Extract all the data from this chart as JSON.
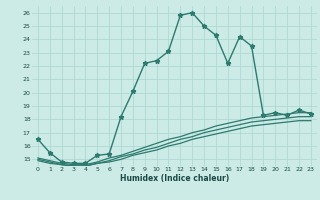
{
  "xlabel": "Humidex (Indice chaleur)",
  "x": [
    0,
    1,
    2,
    3,
    4,
    5,
    6,
    7,
    8,
    9,
    10,
    11,
    12,
    13,
    14,
    15,
    16,
    17,
    18,
    19,
    20,
    21,
    22,
    23
  ],
  "main_line": [
    16.5,
    15.5,
    14.8,
    14.7,
    14.7,
    15.3,
    15.4,
    18.2,
    20.1,
    22.2,
    22.4,
    23.1,
    25.8,
    26.0,
    25.0,
    24.3,
    22.2,
    24.2,
    23.5,
    18.3,
    18.5,
    18.3,
    18.7,
    18.4
  ],
  "line2": [
    15.1,
    14.9,
    14.7,
    14.6,
    14.6,
    14.8,
    15.1,
    15.3,
    15.6,
    15.9,
    16.2,
    16.5,
    16.7,
    17.0,
    17.2,
    17.5,
    17.7,
    17.9,
    18.1,
    18.2,
    18.3,
    18.4,
    18.5,
    18.5
  ],
  "line3": [
    15.0,
    14.8,
    14.6,
    14.5,
    14.5,
    14.7,
    14.9,
    15.2,
    15.4,
    15.7,
    15.9,
    16.2,
    16.5,
    16.7,
    17.0,
    17.2,
    17.4,
    17.6,
    17.8,
    17.9,
    18.0,
    18.1,
    18.2,
    18.2
  ],
  "line4": [
    14.9,
    14.7,
    14.6,
    14.5,
    14.5,
    14.7,
    14.8,
    15.0,
    15.3,
    15.5,
    15.7,
    16.0,
    16.2,
    16.5,
    16.7,
    16.9,
    17.1,
    17.3,
    17.5,
    17.6,
    17.7,
    17.8,
    17.9,
    17.9
  ],
  "line_color": "#2d7a6e",
  "bg_color": "#cceae6",
  "grid_color": "#aad6d0",
  "ylim": [
    14.5,
    26.5
  ],
  "yticks": [
    15,
    16,
    17,
    18,
    19,
    20,
    21,
    22,
    23,
    24,
    25,
    26
  ],
  "xticks": [
    0,
    1,
    2,
    3,
    4,
    5,
    6,
    7,
    8,
    9,
    10,
    11,
    12,
    13,
    14,
    15,
    16,
    17,
    18,
    19,
    20,
    21,
    22,
    23
  ]
}
